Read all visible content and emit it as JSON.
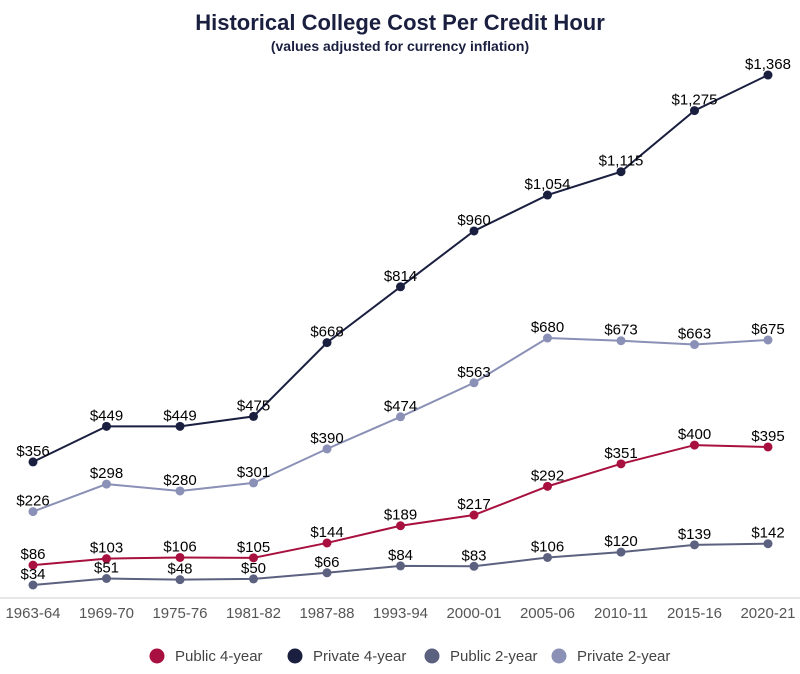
{
  "chart_data": {
    "type": "line",
    "title": "Historical College Cost Per Credit Hour",
    "subtitle": "(values adjusted for currency inflation)",
    "categories": [
      "1963-64",
      "1969-70",
      "1975-76",
      "1981-82",
      "1987-88",
      "1993-94",
      "2000-01",
      "2005-06",
      "2010-11",
      "2015-16",
      "2020-21"
    ],
    "legend_position": "bottom",
    "grid": false,
    "series": [
      {
        "name": "Public 4-year",
        "color": "#a8103f",
        "values": [
          86,
          103,
          106,
          105,
          144,
          189,
          217,
          292,
          351,
          400,
          395
        ]
      },
      {
        "name": "Private 4-year",
        "color": "#1a1f40",
        "values": [
          356,
          449,
          449,
          475,
          668,
          814,
          960,
          1054,
          1115,
          1275,
          1368
        ]
      },
      {
        "name": "Public 2-year",
        "color": "#5c6180",
        "values": [
          34,
          51,
          48,
          50,
          66,
          84,
          83,
          106,
          120,
          139,
          142
        ]
      },
      {
        "name": "Private 2-year",
        "color": "#8a90b6",
        "values": [
          226,
          298,
          280,
          301,
          390,
          474,
          563,
          680,
          673,
          663,
          675
        ]
      }
    ],
    "labels": {
      "Public 4-year": [
        "$86",
        "$103",
        "$106",
        "$105",
        "$144",
        "$189",
        "$217",
        "$292",
        "$351",
        "$400",
        "$395"
      ],
      "Private 4-year": [
        "$356",
        "$449",
        "$449",
        "$475",
        "$668",
        "$814",
        "$960",
        "$1,054",
        "$1,115",
        "$1,275",
        "$1,368"
      ],
      "Public 2-year": [
        "$34",
        "$51",
        "$48",
        "$50",
        "$66",
        "$84",
        "$83",
        "$106",
        "$120",
        "$139",
        "$142"
      ],
      "Private 2-year": [
        "$226",
        "$298",
        "$280",
        "$301",
        "$390",
        "$474",
        "$563",
        "$680",
        "$673",
        "$663",
        "$675"
      ]
    }
  }
}
